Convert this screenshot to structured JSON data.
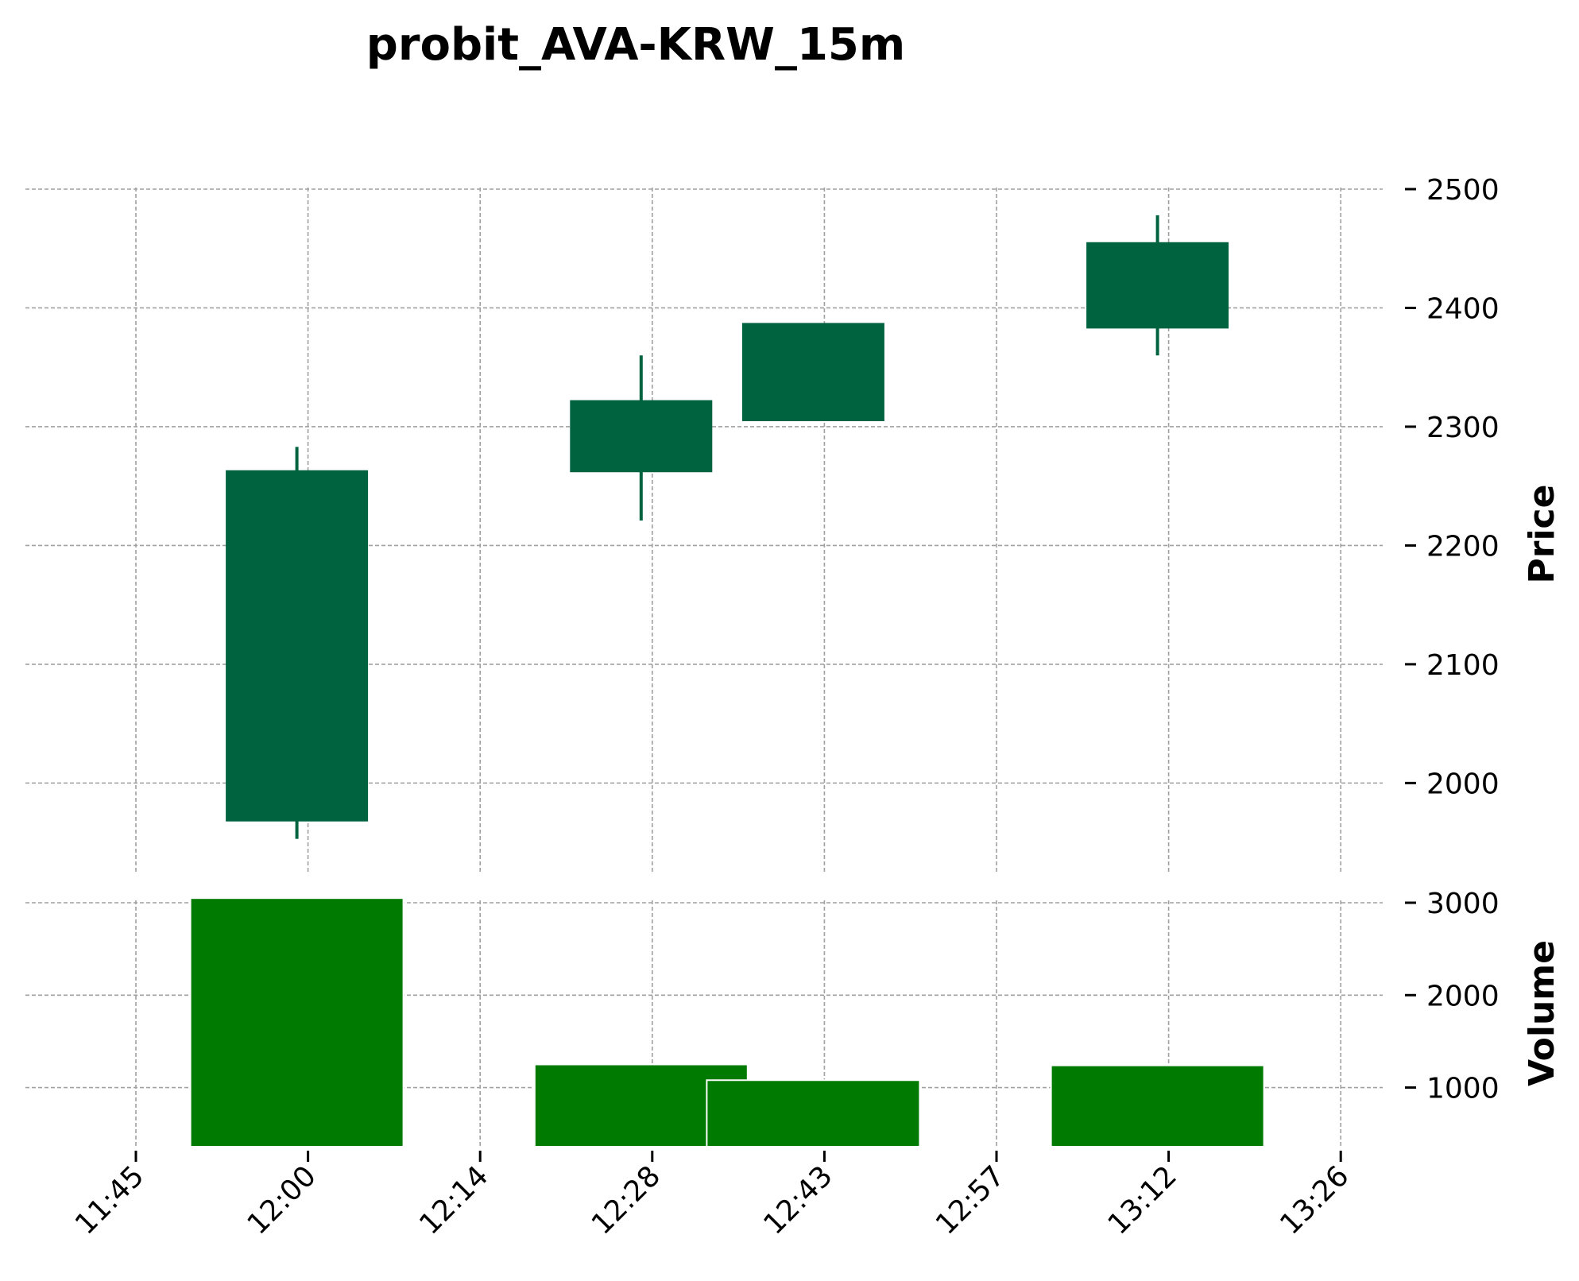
{
  "chart_data": {
    "type": "candlestick",
    "title": "probit_AVA-KRW_15m",
    "colors": {
      "up": "#006340",
      "volume": "#007a00",
      "grid": "#a0a0a0"
    },
    "grid": true,
    "x_tick_labels": [
      "11:45",
      "12:00",
      "12:14",
      "12:28",
      "12:43",
      "12:57",
      "13:12",
      "13:26"
    ],
    "price_panel": {
      "ylabel": "Price",
      "y_ticks": [
        2000,
        2100,
        2200,
        2300,
        2400,
        2500
      ],
      "ylim": [
        1930,
        2500
      ]
    },
    "volume_panel": {
      "ylabel": "Volume",
      "y_ticks": [
        1000,
        2000,
        3000
      ],
      "ylim": [
        360,
        3000
      ]
    },
    "candles": [
      {
        "slot": 1,
        "open": 1968,
        "high": 2283,
        "low": 1953,
        "close": 2263,
        "volume": 3050
      },
      {
        "slot": 3,
        "open": 2262,
        "high": 2360,
        "low": 2221,
        "close": 2322,
        "volume": 1250
      },
      {
        "slot": 4,
        "open": 2305,
        "high": 2387,
        "low": 2305,
        "close": 2387,
        "volume": 1080
      },
      {
        "slot": 6,
        "open": 2383,
        "high": 2478,
        "low": 2360,
        "close": 2455,
        "volume": 1240
      }
    ]
  }
}
